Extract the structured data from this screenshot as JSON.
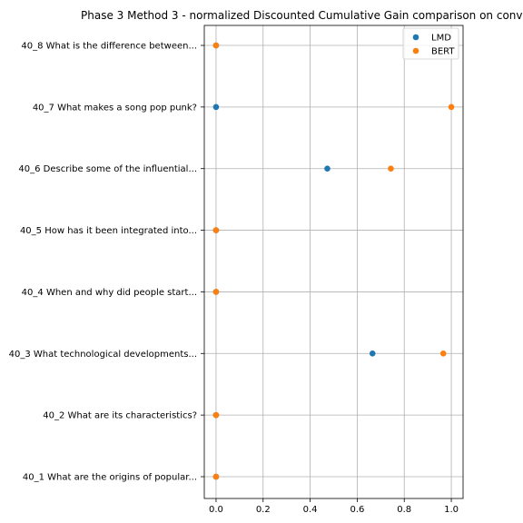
{
  "chart_data": {
    "type": "scatter",
    "title": "Phase 3 Method 3 - normalized Discounted Cumulative Gain comparison on conv",
    "xlabel": "",
    "ylabel": "",
    "xlim": [
      -0.05,
      1.05
    ],
    "x_ticks": [
      0.0,
      0.2,
      0.4,
      0.6,
      0.8,
      1.0
    ],
    "x_tick_labels": [
      "0.0",
      "0.2",
      "0.4",
      "0.6",
      "0.8",
      "1.0"
    ],
    "categories": [
      "40_1 What are the origins of popular...",
      "40_2 What are its characteristics?",
      "40_3 What technological developments...",
      "40_4 When and why did people start...",
      "40_5 How has it been integrated into...",
      "40_6 Describe some of the influential...",
      "40_7 What makes a song pop punk?",
      "40_8 What is the difference between..."
    ],
    "grid": true,
    "legend_position": "top-right",
    "series": [
      {
        "name": "LMD",
        "color": "#1f77b4",
        "values": [
          0.0,
          0.0,
          0.665,
          0.0,
          0.0,
          0.473,
          0.0,
          0.0
        ]
      },
      {
        "name": "BERT",
        "color": "#ff7f0e",
        "values": [
          0.0,
          0.0,
          0.966,
          0.0,
          0.0,
          0.743,
          1.0,
          0.0
        ]
      }
    ]
  }
}
